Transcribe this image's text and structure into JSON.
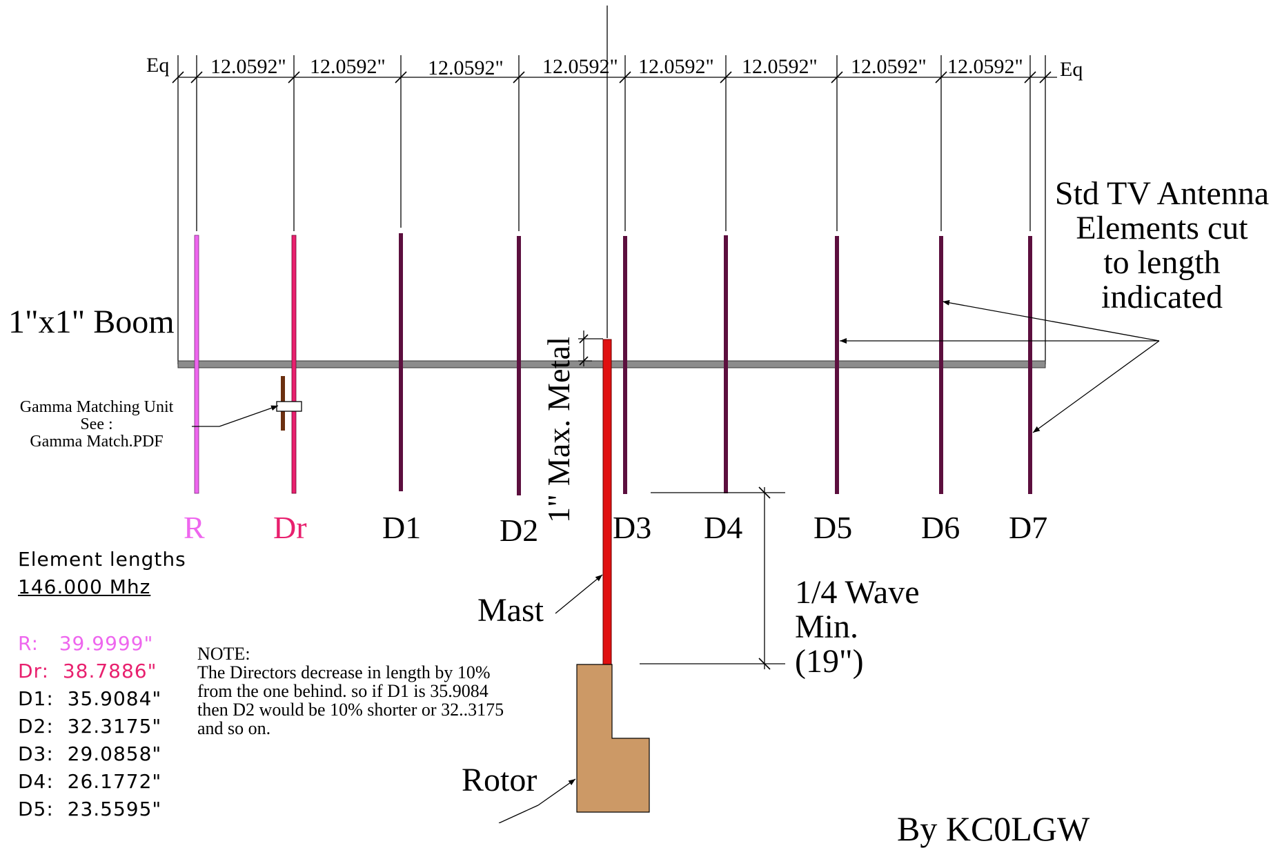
{
  "colors": {
    "reflector": "#ee66ee",
    "driven": "#e8206e",
    "director": "#5c0f3e",
    "mast": "#e01010",
    "rotor": "#cc9966",
    "boom": "#8c8c8c",
    "gamma_bar": "#6b3010"
  },
  "dimensions": {
    "spacing_label": "12.0592\"",
    "eq_left": "Eq",
    "eq_right": "Eq"
  },
  "elements": [
    {
      "id": "R",
      "label": "R",
      "role": "reflector"
    },
    {
      "id": "Dr",
      "label": "Dr",
      "role": "driven"
    },
    {
      "id": "D1",
      "label": "D1",
      "role": "director"
    },
    {
      "id": "D2",
      "label": "D2",
      "role": "director"
    },
    {
      "id": "D3",
      "label": "D3",
      "role": "director"
    },
    {
      "id": "D4",
      "label": "D4",
      "role": "director"
    },
    {
      "id": "D5",
      "label": "D5",
      "role": "director"
    },
    {
      "id": "D6",
      "label": "D6",
      "role": "director"
    },
    {
      "id": "D7",
      "label": "D7",
      "role": "director"
    }
  ],
  "labels": {
    "boom": "1\"x1\" Boom",
    "std_tv": [
      "Std TV Antenna",
      "Elements cut",
      "to length",
      "indicated"
    ],
    "gamma": [
      "Gamma Matching Unit",
      "See :",
      "Gamma Match.PDF"
    ],
    "mast": "Mast",
    "rotor": "Rotor",
    "quarter_wave": [
      "1/4 Wave",
      "Min.",
      "(19\")"
    ],
    "rotated_note": "1\" Max. Metal",
    "author_partial": "By KC0LGW"
  },
  "lengths": {
    "title": "Element lengths",
    "frequency": "146.000 Mhz",
    "items": [
      {
        "name": "R:",
        "value": "39.9999\""
      },
      {
        "name": "Dr:",
        "value": "38.7886\""
      },
      {
        "name": "D1:",
        "value": "35.9084\""
      },
      {
        "name": "D2:",
        "value": "32.3175\""
      },
      {
        "name": "D3:",
        "value": "29.0858\""
      },
      {
        "name": "D4:",
        "value": "26.1772\""
      },
      {
        "name": "D5:",
        "value": "23.5595\""
      }
    ]
  },
  "note": {
    "heading": "NOTE:",
    "lines": [
      "The Directors decrease in length by 10%",
      "from the one behind. so if D1 is 35.9084",
      "then D2 would be 10% shorter or 32..3175",
      "and so on."
    ]
  }
}
